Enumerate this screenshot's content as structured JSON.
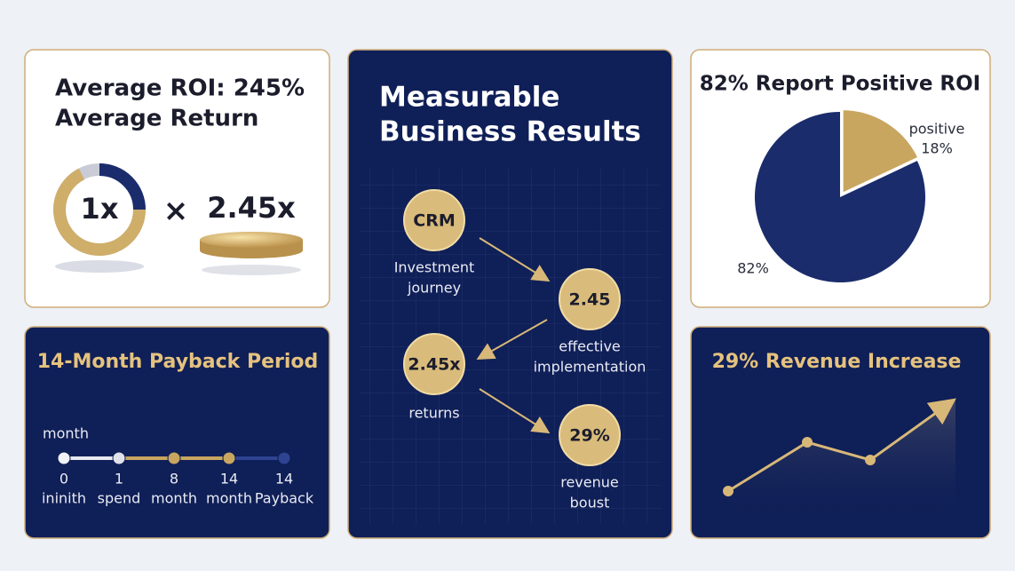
{
  "roi_card": {
    "title_line1": "Average ROI: 245%",
    "title_line2": "Average Return",
    "from": "1x",
    "operator": "×",
    "to": "2.45x"
  },
  "results_card": {
    "title_line1": "Measurable",
    "title_line2": "Business Results",
    "steps": [
      {
        "badge": "CRM",
        "caption": [
          "Investment",
          "journey"
        ]
      },
      {
        "badge": "2.45",
        "caption": [
          "effective",
          "implementation"
        ]
      },
      {
        "badge": "2.45x",
        "caption": [
          "returns"
        ]
      },
      {
        "badge": "29%",
        "caption": [
          "revenue",
          "boust"
        ]
      }
    ]
  },
  "positive_card": {
    "title": "82% Report Positive ROI",
    "pie": {
      "values": [
        82,
        18
      ],
      "value_labels": [
        "82%",
        "18%"
      ],
      "slice_label": "positive",
      "colors": [
        "#1a2c6b",
        "#c9a660"
      ]
    }
  },
  "payback_card": {
    "title": "14-Month Payback Period",
    "axis_label": "month",
    "stops": [
      {
        "number": 0,
        "label": "ininith"
      },
      {
        "number": 1,
        "label": "spend"
      },
      {
        "number": 8,
        "label": "month"
      },
      {
        "number": 14,
        "label": "month"
      },
      {
        "number": 14,
        "label": "Payback"
      }
    ]
  },
  "revenue_card": {
    "title": "29% Revenue Increase"
  }
}
